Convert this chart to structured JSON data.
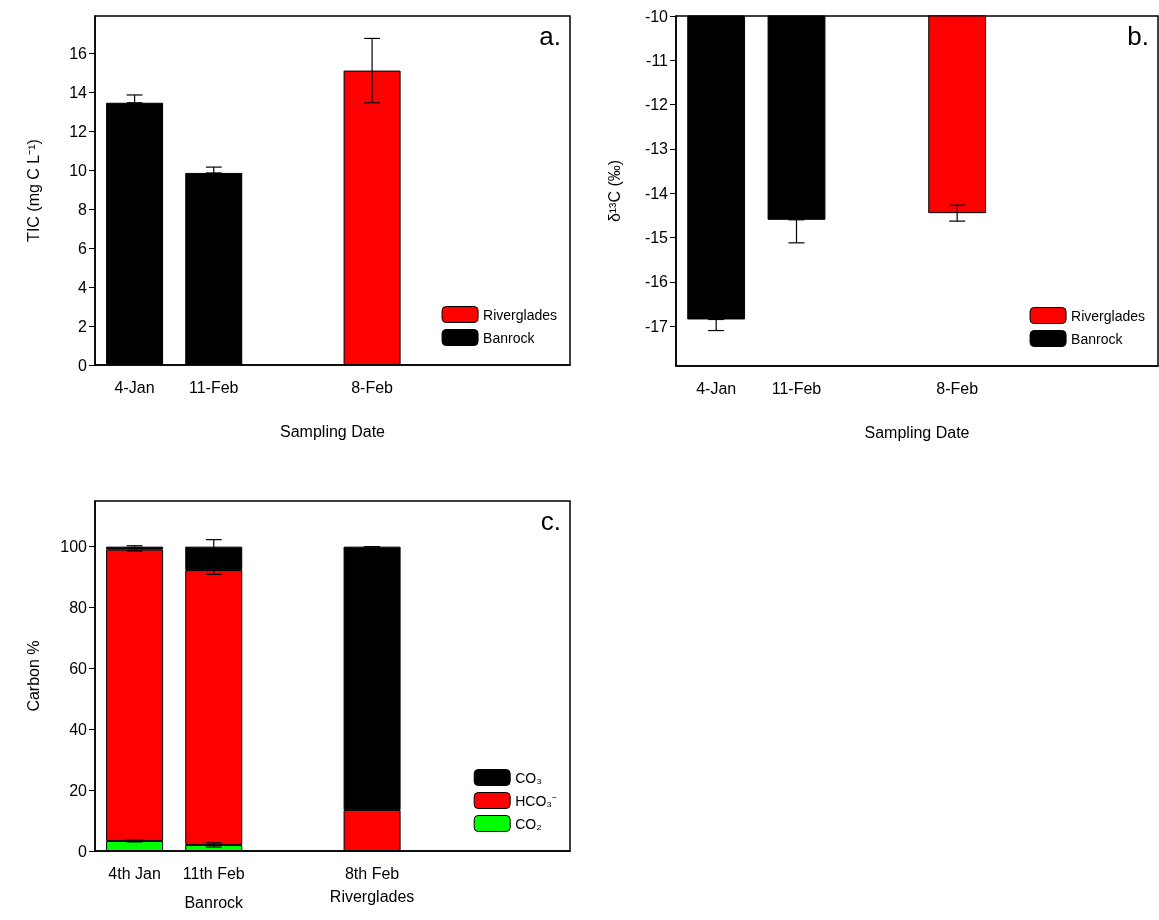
{
  "chart_data": [
    {
      "type": "bar",
      "title": "a.",
      "xlabel": "Sampling Date",
      "ylabel": "TIC (mg C L⁻¹)",
      "categories": [
        "4-Jan",
        "11-Feb",
        null,
        "8-Feb",
        null,
        null
      ],
      "series": [
        {
          "name": "Banrock",
          "color": "#000000",
          "values": [
            13.45,
            9.85,
            null,
            null,
            null,
            null
          ],
          "errors": [
            [
              13.45,
              13.85
            ],
            [
              9.85,
              10.15
            ],
            null,
            null,
            null,
            null
          ]
        },
        {
          "name": "Riverglades",
          "color": "#ff0000",
          "values": [
            null,
            null,
            null,
            15.1,
            null,
            null
          ],
          "errors": [
            null,
            null,
            null,
            1.65,
            null,
            null
          ]
        }
      ],
      "ylim": [
        0,
        17.9
      ],
      "yticks": [
        0,
        2,
        4,
        6,
        8,
        10,
        12,
        14,
        16
      ],
      "grid": false,
      "legend": "bottom right"
    },
    {
      "type": "bar",
      "title": "b.",
      "xlabel": "Sampling Date",
      "ylabel": "δ¹³C (‰)",
      "categories": [
        "4-Jan",
        "11-Feb",
        null,
        "8-Feb",
        null,
        null
      ],
      "series": [
        {
          "name": "Banrock",
          "color": "#000000",
          "values": [
            -16.85,
            -14.6,
            null,
            null,
            null,
            null
          ],
          "errors": [
            [
              -17.1,
              -16.85
            ],
            [
              -15.12,
              -14.6
            ],
            null,
            null,
            null,
            null
          ]
        },
        {
          "name": "Riverglades",
          "color": "#ff0000",
          "values": [
            null,
            null,
            null,
            -14.45,
            null,
            null
          ],
          "errors": [
            null,
            null,
            null,
            0.18,
            null,
            null
          ]
        }
      ],
      "ylim": [
        -17.9,
        -10
      ],
      "yticks": [
        -17,
        -16,
        -15,
        -14,
        -13,
        -12,
        -11,
        -10
      ],
      "grid": false,
      "legend": "bottom right"
    },
    {
      "type": "bar",
      "title": "c.",
      "ylabel": "Carbon %",
      "categories": [
        "4th Jan",
        "11th Feb",
        null,
        "8th Feb",
        null,
        null
      ],
      "stacked": true,
      "series": [
        {
          "name": "CO₂",
          "color": "#00ff00",
          "values": [
            3.3,
            2.0,
            null,
            0,
            null,
            null
          ],
          "errors": [
            0.3,
            0.7,
            null,
            null,
            null,
            null
          ]
        },
        {
          "name": "HCO₃⁻",
          "color": "#ff0000",
          "values": [
            95.7,
            90.3,
            null,
            13.5,
            null,
            null
          ],
          "errors": [
            0.4,
            1.4,
            null,
            null,
            null,
            null
          ]
        },
        {
          "name": "CO₃",
          "color": "#000000",
          "values": [
            1.0,
            7.7,
            null,
            86.5,
            null,
            null
          ],
          "errors": [
            0.3,
            2.3,
            null,
            0,
            null,
            null
          ]
        }
      ],
      "ylim": [
        0,
        115
      ],
      "yticks": [
        0,
        20,
        40,
        60,
        80,
        100
      ],
      "grid": false,
      "legend": "bottom right",
      "annotations": [
        "Banrock",
        "Riverglades"
      ]
    }
  ]
}
